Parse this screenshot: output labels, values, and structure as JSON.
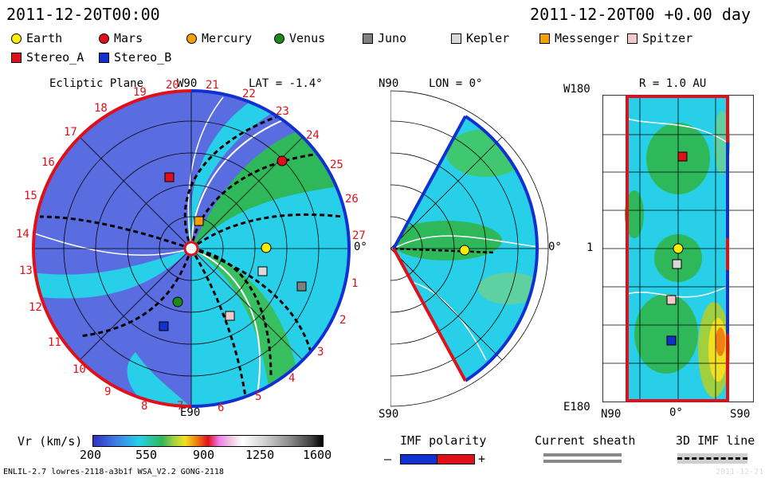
{
  "header": {
    "left_date": "2011-12-20T00:00",
    "right_date": "2011-12-20T00 +0.00 day"
  },
  "legend": [
    {
      "name": "Earth",
      "shape": "circle",
      "color": "#ffee00"
    },
    {
      "name": "Mars",
      "shape": "circle",
      "color": "#e0101a"
    },
    {
      "name": "Mercury",
      "shape": "circle",
      "color": "#f4a000"
    },
    {
      "name": "Venus",
      "shape": "circle",
      "color": "#1b8a1b"
    },
    {
      "name": "Juno",
      "shape": "square",
      "color": "#808080"
    },
    {
      "name": "Kepler",
      "shape": "square",
      "color": "#d8d8d8"
    },
    {
      "name": "Messenger",
      "shape": "square",
      "color": "#f4a000"
    },
    {
      "name": "Spitzer",
      "shape": "square",
      "color": "#f5c8c8"
    },
    {
      "name": "Stereo_A",
      "shape": "square",
      "color": "#e0101a"
    },
    {
      "name": "Stereo_B",
      "shape": "square",
      "color": "#1030d0"
    }
  ],
  "panel1": {
    "title": "Ecliptic Plane",
    "top_label": "W90",
    "lat_label": "LAT = -1.4°",
    "bottom_label": "E90",
    "zero_label": "0°",
    "rotations": [
      "19",
      "20",
      "21",
      "22",
      "23",
      "24",
      "25",
      "26",
      "27",
      "1",
      "2",
      "3",
      "4",
      "5",
      "6",
      "7",
      "8",
      "9",
      "10",
      "11",
      "12",
      "13",
      "14",
      "15",
      "16",
      "17",
      "18"
    ]
  },
  "panel2": {
    "top_label": "N90",
    "lon_label": "LON = 0°",
    "bottom_label": "S90",
    "zero_label": "0°"
  },
  "panel3": {
    "r_label": "R = 1.0 AU",
    "top_left": "W180",
    "mid_left": "1",
    "bottom_left": "E180",
    "x_left": "N90",
    "x_mid": "0°",
    "x_right": "S90"
  },
  "colorbar": {
    "label": "Vr (km/s)",
    "ticks": [
      "200",
      "550",
      "900",
      "1250",
      "1600"
    ]
  },
  "polarity": {
    "title": "IMF polarity",
    "minus": "–",
    "plus": "+",
    "neg_color": "#1030d0",
    "pos_color": "#e0101a"
  },
  "sheath": {
    "title": "Current sheath"
  },
  "imf3d": {
    "title": "3D IMF line"
  },
  "footer": {
    "left": "ENLIL-2.7 lowres-2118-a3b1f WSA_V2.2 GONG-2118",
    "right": "2011-12-21"
  }
}
